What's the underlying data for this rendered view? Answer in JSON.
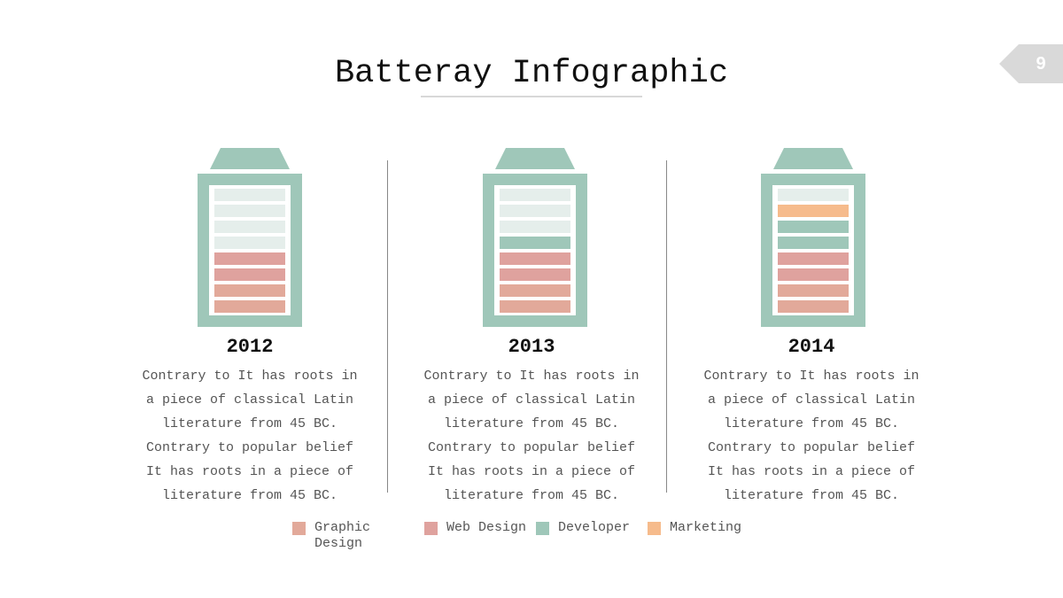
{
  "page": {
    "number": "9",
    "title": "Batteray Infographic"
  },
  "colors": {
    "graphic_design": "#e2a99a",
    "web_design": "#dfa29e",
    "developer": "#9fc7b9",
    "marketing": "#f6bb8c",
    "empty": "#e5eeeb",
    "battery_frame": "#9fc7b9"
  },
  "batteries": [
    {
      "year": "2012",
      "cells_top_to_bottom": [
        "empty",
        "empty",
        "empty",
        "empty",
        "web_design",
        "web_design",
        "graphic_design",
        "graphic_design"
      ],
      "text": [
        "Contrary to It has roots in",
        "a piece of classical Latin",
        "literature from 45 BC.",
        "Contrary to popular belief",
        "It has roots in a piece of",
        "literature from 45 BC."
      ]
    },
    {
      "year": "2013",
      "cells_top_to_bottom": [
        "empty",
        "empty",
        "empty",
        "developer",
        "web_design",
        "web_design",
        "graphic_design",
        "graphic_design"
      ],
      "text": [
        "Contrary to It has roots in",
        "a piece of classical Latin",
        "literature from 45 BC.",
        "Contrary to popular belief",
        "It has roots in a piece of",
        "literature from 45 BC."
      ]
    },
    {
      "year": "2014",
      "cells_top_to_bottom": [
        "empty",
        "marketing",
        "developer",
        "developer",
        "web_design",
        "web_design",
        "graphic_design",
        "graphic_design"
      ],
      "text": [
        "Contrary to It has roots in",
        "a piece of classical Latin",
        "literature from 45 BC.",
        "Contrary to popular belief",
        "It has roots in a piece of",
        "literature from 45 BC."
      ]
    }
  ],
  "legend": [
    {
      "key": "graphic_design",
      "label_lines": [
        "Graphic",
        "Design"
      ]
    },
    {
      "key": "web_design",
      "label_lines": [
        "Web Design"
      ]
    },
    {
      "key": "developer",
      "label_lines": [
        "Developer"
      ]
    },
    {
      "key": "marketing",
      "label_lines": [
        "Marketing"
      ]
    }
  ]
}
